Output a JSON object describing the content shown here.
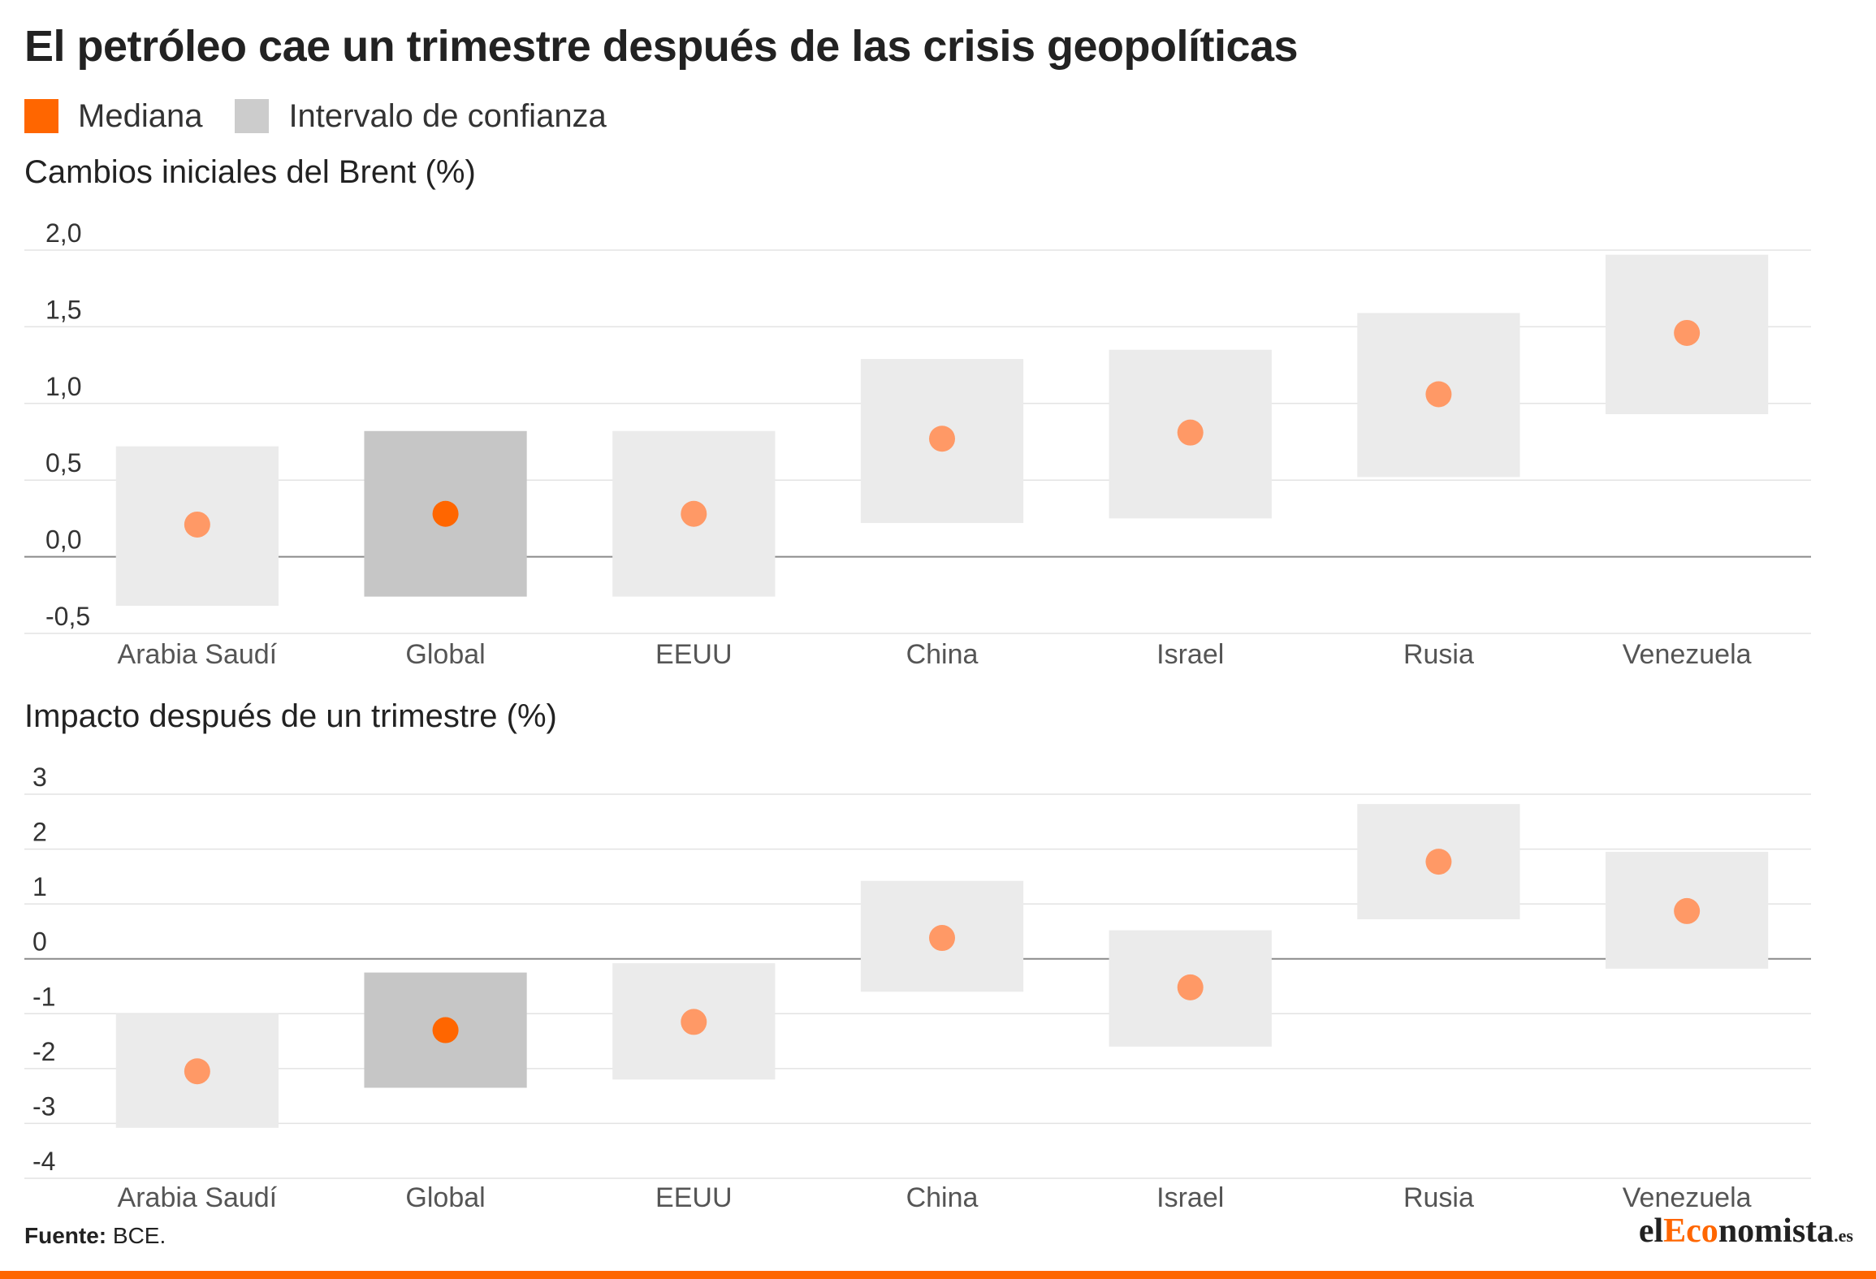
{
  "title": "El petróleo cae un trimestre después de las crisis geopolíticas",
  "legend": [
    {
      "label": "Mediana",
      "color": "#ff6600"
    },
    {
      "label": "Intervalo de confianza",
      "color": "#cccccc"
    }
  ],
  "source": {
    "label": "Fuente:",
    "text": "BCE."
  },
  "brand": {
    "pre": "el",
    "accent": "Eco",
    "post": "nomista",
    "suffix": ".es"
  },
  "colors": {
    "median": "#ff6600",
    "median_light": "#ff9966",
    "ci": "#ebebeb",
    "ci_highlight": "#c6c6c6",
    "grid": "#e3e3e3",
    "zero": "#8a8a8a",
    "tick": "#333333",
    "category": "#555555"
  },
  "chart_data": [
    {
      "type": "scatter",
      "title": "Cambios iniciales del Brent (%)",
      "categories": [
        "Arabia Saudí",
        "Global",
        "EEUU",
        "China",
        "Israel",
        "Rusia",
        "Venezuela"
      ],
      "highlight": "Global",
      "ylim": [
        -0.5,
        2.0
      ],
      "yticks": [
        2.0,
        1.5,
        1.0,
        0.5,
        0.0,
        -0.5
      ],
      "ytick_labels": [
        "2,0",
        "1,5",
        "1,0",
        "0,5",
        "0,0",
        "-0,5"
      ],
      "grid": true,
      "series": [
        {
          "name": "Mediana",
          "values": [
            0.21,
            0.28,
            0.28,
            0.77,
            0.81,
            1.06,
            1.46
          ]
        },
        {
          "name": "Intervalo de confianza",
          "low": [
            -0.32,
            -0.26,
            -0.26,
            0.22,
            0.25,
            0.52,
            0.93
          ],
          "high": [
            0.72,
            0.82,
            0.82,
            1.29,
            1.35,
            1.59,
            1.97
          ]
        }
      ]
    },
    {
      "type": "scatter",
      "title": "Impacto después de un trimestre (%)",
      "categories": [
        "Arabia Saudí",
        "Global",
        "EEUU",
        "China",
        "Israel",
        "Rusia",
        "Venezuela"
      ],
      "highlight": "Global",
      "ylim": [
        -4,
        3
      ],
      "yticks": [
        3,
        2,
        1,
        0,
        -1,
        -2,
        -3,
        -4
      ],
      "ytick_labels": [
        "3",
        "2",
        "1",
        "0",
        "-1",
        "-2",
        "-3",
        "-4"
      ],
      "grid": true,
      "series": [
        {
          "name": "Mediana",
          "values": [
            -2.05,
            -1.3,
            -1.15,
            0.38,
            -0.52,
            1.77,
            0.87
          ]
        },
        {
          "name": "Intervalo de confianza",
          "low": [
            -3.08,
            -2.35,
            -2.2,
            -0.6,
            -1.6,
            0.72,
            -0.18
          ],
          "high": [
            -1.0,
            -0.25,
            -0.08,
            1.42,
            0.52,
            2.82,
            1.95
          ]
        }
      ]
    }
  ]
}
